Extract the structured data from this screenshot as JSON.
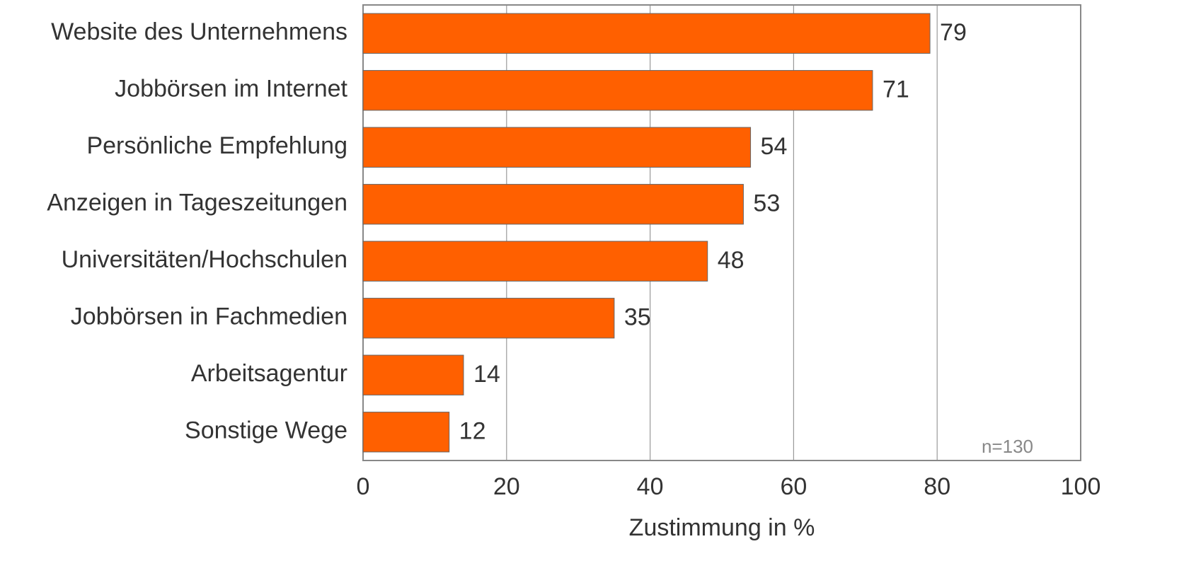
{
  "chart_data": {
    "type": "bar",
    "orientation": "horizontal",
    "categories": [
      "Website des Unternehmens",
      "Jobbörsen im Internet",
      "Persönliche Empfehlung",
      "Anzeigen in Tageszeitungen",
      "Universitäten/Hochschulen",
      "Jobbörsen in Fachmedien",
      "Arbeitsagentur",
      "Sonstige Wege"
    ],
    "values": [
      79,
      71,
      54,
      53,
      48,
      35,
      14,
      12
    ],
    "color": "#ff6000",
    "xlim": [
      0,
      100
    ],
    "xticks": [
      0,
      20,
      40,
      60,
      80,
      100
    ],
    "grid": true,
    "xlabel": "Zustimmung in %",
    "annotation": "n=130"
  }
}
